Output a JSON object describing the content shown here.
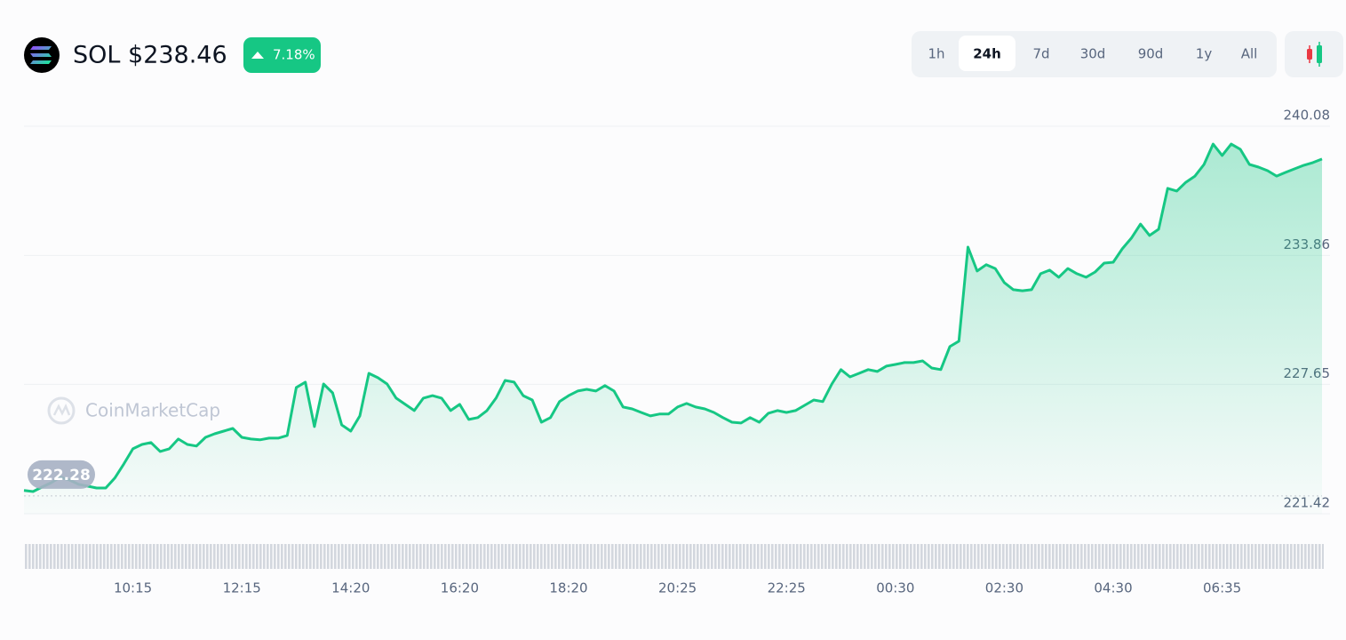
{
  "chart_data": {
    "type": "line",
    "title": "SOL $238.46",
    "change": "7.18%",
    "ranges": [
      "1h",
      "24h",
      "7d",
      "30d",
      "90d",
      "1y",
      "All"
    ],
    "selected_range": "24h",
    "watermark": "CoinMarketCap",
    "reference_value": 222.28,
    "color": "#16c784",
    "grid": true,
    "ylim": [
      221.42,
      240.08
    ],
    "yticks": [
      221.42,
      227.65,
      233.86,
      240.08
    ],
    "categories": [
      null,
      null,
      null,
      null,
      null,
      null,
      null,
      null,
      null,
      null,
      null,
      null,
      "10:15",
      null,
      null,
      null,
      null,
      null,
      null,
      null,
      null,
      null,
      null,
      null,
      "12:15",
      null,
      null,
      null,
      null,
      null,
      null,
      null,
      null,
      null,
      null,
      null,
      "14:20",
      null,
      null,
      null,
      null,
      null,
      null,
      null,
      null,
      null,
      null,
      null,
      "16:20",
      null,
      null,
      null,
      null,
      null,
      null,
      null,
      null,
      null,
      null,
      null,
      "18:20",
      null,
      null,
      null,
      null,
      null,
      null,
      null,
      null,
      null,
      null,
      null,
      "20:25",
      null,
      null,
      null,
      null,
      null,
      null,
      null,
      null,
      null,
      null,
      null,
      "22:25",
      null,
      null,
      null,
      null,
      null,
      null,
      null,
      null,
      null,
      null,
      null,
      "00:30",
      null,
      null,
      null,
      null,
      null,
      null,
      null,
      null,
      null,
      null,
      null,
      "02:30",
      null,
      null,
      null,
      null,
      null,
      null,
      null,
      null,
      null,
      null,
      null,
      "04:30",
      null,
      null,
      null,
      null,
      null,
      null,
      null,
      null,
      null,
      null,
      null,
      "06:35",
      null,
      null,
      null,
      null,
      null,
      null,
      null,
      null,
      null,
      null,
      null
    ],
    "values": [
      222.54,
      222.49,
      222.71,
      222.92,
      223.18,
      223.05,
      222.84,
      222.75,
      222.66,
      222.66,
      223.14,
      223.82,
      224.55,
      224.76,
      224.85,
      224.42,
      224.55,
      225.02,
      224.76,
      224.68,
      225.1,
      225.27,
      225.4,
      225.53,
      225.1,
      225.02,
      224.98,
      225.06,
      225.06,
      225.19,
      227.5,
      227.76,
      225.62,
      227.67,
      227.24,
      225.7,
      225.4,
      226.13,
      228.18,
      227.97,
      227.67,
      226.99,
      226.69,
      226.39,
      226.99,
      227.11,
      226.99,
      226.39,
      226.69,
      225.96,
      226.05,
      226.39,
      226.99,
      227.84,
      227.76,
      227.11,
      226.9,
      225.83,
      226.05,
      226.82,
      227.11,
      227.33,
      227.41,
      227.33,
      227.59,
      227.33,
      226.56,
      226.47,
      226.3,
      226.13,
      226.22,
      226.22,
      226.56,
      226.73,
      226.56,
      226.47,
      226.3,
      226.05,
      225.83,
      225.79,
      226.05,
      225.83,
      226.26,
      226.39,
      226.3,
      226.39,
      226.64,
      226.9,
      226.82,
      227.67,
      228.36,
      228.01,
      228.18,
      228.36,
      228.27,
      228.53,
      228.61,
      228.7,
      228.7,
      228.78,
      228.44,
      228.36,
      229.47,
      229.73,
      234.26,
      233.11,
      233.41,
      233.23,
      232.55,
      232.21,
      232.16,
      232.21,
      232.98,
      233.15,
      232.81,
      233.23,
      232.98,
      232.81,
      233.06,
      233.49,
      233.53,
      234.18,
      234.69,
      235.37,
      234.82,
      235.12,
      237.09,
      236.96,
      237.38,
      237.68,
      238.24,
      239.22,
      238.67,
      239.22,
      238.97,
      238.24,
      238.11,
      237.94,
      237.68,
      237.86,
      238.03,
      238.2,
      238.33,
      238.5
    ]
  }
}
